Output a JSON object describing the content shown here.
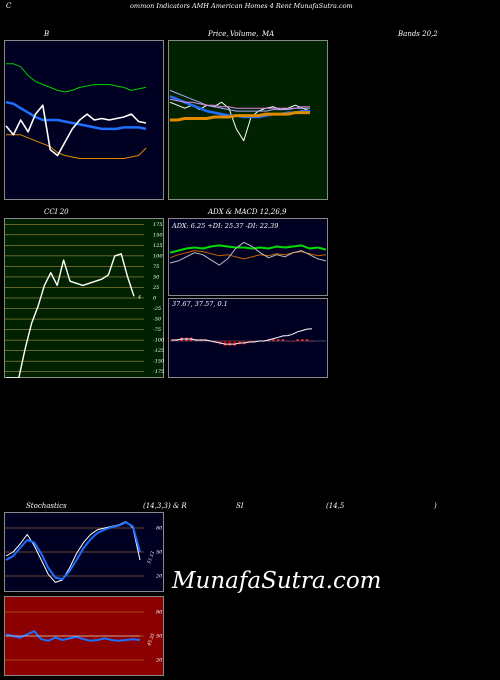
{
  "header": {
    "left_char": "C",
    "title": "ommon  Indicators AMH American  Homes 4  Rent MunafaSutra.com"
  },
  "labels": {
    "b": "B",
    "price": "Price,",
    "volume": "Volume,",
    "ma": "MA",
    "bands": "Bands 20,2",
    "cci": "CCI 20",
    "adx": "ADX  & MACD 12,26,9",
    "stoch": "Stochastics",
    "stoch_params": "(14,3,3) & R",
    "si": "SI",
    "rsi_params": "(14,5",
    "rsi_close": ")"
  },
  "watermark": "MunafaSutra.com",
  "colors": {
    "navy": "#000022",
    "green_panel": "#002200",
    "red_panel": "#8b0000",
    "blue_line": "#1e6fff",
    "green_line": "#00cc00",
    "orange_line": "#e08a00",
    "white_line": "#ffffff"
  },
  "chart_data": [
    {
      "type": "line",
      "name": "bollinger",
      "ylim": [
        0,
        100
      ],
      "series": [
        {
          "key": "upper",
          "color": "#00cc00",
          "values": [
            88,
            88,
            86,
            80,
            76,
            74,
            72,
            70,
            69,
            70,
            72,
            73,
            74,
            74,
            74,
            73,
            72,
            70,
            71,
            72
          ]
        },
        {
          "key": "middle",
          "color": "#1e6fff",
          "values": [
            62,
            61,
            58,
            55,
            52,
            50,
            50,
            50,
            49,
            48,
            47,
            46,
            45,
            44,
            44,
            44,
            45,
            45,
            45,
            44
          ]
        },
        {
          "key": "lower",
          "color": "#e08a00",
          "values": [
            40,
            40,
            40,
            38,
            36,
            34,
            32,
            28,
            26,
            25,
            24,
            24,
            24,
            24,
            24,
            24,
            24,
            25,
            26,
            31
          ]
        },
        {
          "key": "price",
          "color": "#ffffff",
          "values": [
            46,
            40,
            50,
            42,
            54,
            60,
            30,
            26,
            35,
            44,
            50,
            54,
            50,
            51,
            50,
            51,
            52,
            54,
            49,
            48
          ]
        }
      ]
    },
    {
      "type": "line",
      "name": "price-volume-ma",
      "ylim": [
        0,
        100
      ],
      "series": [
        {
          "key": "price",
          "color": "#ffffff",
          "values": [
            62,
            60,
            58,
            60,
            57,
            60,
            59,
            62,
            58,
            44,
            36,
            52,
            56,
            58,
            59,
            57,
            58,
            60,
            58,
            56
          ]
        },
        {
          "key": "ma1",
          "color": "#1e6fff",
          "values": [
            66,
            64,
            62,
            60,
            58,
            56,
            55,
            54,
            53,
            53,
            52,
            52,
            52,
            53,
            54,
            54,
            55,
            55,
            56,
            56
          ]
        },
        {
          "key": "ma2",
          "color": "#aaaaff",
          "values": [
            70,
            68,
            66,
            64,
            62,
            60,
            59,
            58,
            57,
            56,
            56,
            56,
            56,
            56,
            57,
            57,
            57,
            58,
            58,
            58
          ]
        },
        {
          "key": "ma3",
          "color": "#dd88dd",
          "values": [
            64,
            63,
            62,
            62,
            61,
            60,
            60,
            59,
            59,
            58,
            58,
            58,
            58,
            58,
            58,
            58,
            58,
            58,
            59,
            59
          ]
        },
        {
          "key": "long",
          "color": "#e08a00",
          "values": [
            50,
            50,
            51,
            51,
            51,
            51,
            52,
            52,
            52,
            53,
            53,
            53,
            53,
            54,
            54,
            54,
            54,
            55,
            55,
            55
          ]
        }
      ]
    },
    {
      "type": "line",
      "name": "cci",
      "ylim": [
        -190,
        190
      ],
      "ticks": [
        175,
        150,
        125,
        100,
        75,
        50,
        25,
        0,
        -25,
        -50,
        -75,
        -100,
        -125,
        -150,
        -175
      ],
      "tick_labels": [
        "175",
        "150",
        "125",
        "100",
        "75",
        "50",
        "25",
        "0",
        "-25",
        "-50",
        "-75",
        "-100",
        "-125",
        "-150",
        "-175"
      ],
      "values": [
        -190,
        -190,
        -190,
        -120,
        -60,
        -20,
        30,
        60,
        30,
        90,
        40,
        35,
        30,
        35,
        40,
        45,
        55,
        100,
        105,
        50,
        4
      ],
      "last_label": "4"
    },
    {
      "type": "line",
      "name": "adx",
      "adx": 6.25,
      "plus_di": 25.37,
      "minus_di": 22.39,
      "label_text": "ADX: 6.25  +DI: 25.37 -DI: 22.39",
      "series": [
        {
          "key": "plus_di",
          "color": "#00dd00",
          "values": [
            40,
            42,
            44,
            45,
            44,
            46,
            47,
            46,
            45,
            45,
            44,
            45,
            44,
            46,
            45,
            46,
            47,
            44,
            45,
            43
          ]
        },
        {
          "key": "minus_di",
          "color": "#cc6600",
          "values": [
            35,
            38,
            40,
            42,
            41,
            39,
            37,
            38,
            36,
            34,
            36,
            38,
            37,
            39,
            38,
            40,
            41,
            39,
            37,
            38
          ]
        },
        {
          "key": "adx",
          "color": "#bbbbbb",
          "values": [
            30,
            32,
            36,
            40,
            38,
            33,
            28,
            34,
            44,
            50,
            46,
            40,
            35,
            38,
            36,
            40,
            42,
            38,
            34,
            32
          ]
        }
      ]
    },
    {
      "type": "bar",
      "name": "macd",
      "label_text": "37.67,  37.57,  0.1",
      "macd": 37.67,
      "signal": 37.57,
      "histogram": 0.1,
      "ylim": [
        -10,
        10
      ],
      "hist_values": [
        1,
        1,
        2,
        2,
        2,
        1,
        1,
        1,
        0,
        -1,
        -2,
        -3,
        -3,
        -3,
        -2,
        -2,
        -1,
        -1,
        0,
        0,
        1,
        1,
        1,
        1,
        0,
        0,
        1,
        1,
        1,
        0
      ]
    },
    {
      "type": "line",
      "name": "stochastics",
      "ylim": [
        0,
        100
      ],
      "ticks": [
        80,
        50,
        20
      ],
      "tick_labels": [
        "80",
        "50",
        "20"
      ],
      "last_label": "51.13",
      "series": [
        {
          "key": "k",
          "color": "#ffffff",
          "values": [
            45,
            50,
            60,
            72,
            58,
            40,
            22,
            12,
            15,
            30,
            48,
            62,
            72,
            78,
            80,
            82,
            84,
            88,
            80,
            40
          ]
        },
        {
          "key": "d",
          "color": "#1e6fff",
          "values": [
            40,
            45,
            55,
            65,
            62,
            48,
            30,
            18,
            16,
            26,
            40,
            55,
            66,
            74,
            78,
            81,
            83,
            87,
            82,
            50
          ]
        }
      ]
    },
    {
      "type": "line",
      "name": "rsi",
      "ylim": [
        0,
        100
      ],
      "ticks": [
        80,
        50,
        20
      ],
      "tick_labels": [
        "80",
        "50",
        "20"
      ],
      "last_label": "45.55",
      "series": [
        {
          "key": "rsi",
          "color": "#1e6fff",
          "values": [
            52,
            50,
            48,
            52,
            56,
            46,
            44,
            48,
            45,
            47,
            49,
            46,
            44,
            45,
            47,
            45,
            44,
            45,
            46,
            45
          ]
        },
        {
          "key": "mid",
          "color": "#ffffff",
          "values": [
            50,
            50,
            50,
            50,
            50,
            50,
            50,
            50,
            50,
            50,
            50,
            50,
            50,
            50,
            50,
            50,
            50,
            50,
            50,
            50
          ]
        }
      ]
    }
  ]
}
